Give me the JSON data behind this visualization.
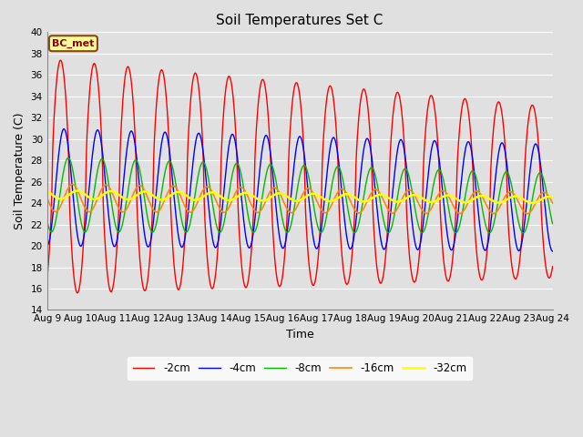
{
  "title": "Soil Temperatures Set C",
  "xlabel": "Time",
  "ylabel": "Soil Temperature (C)",
  "ylim": [
    14,
    40
  ],
  "yticks": [
    14,
    16,
    18,
    20,
    22,
    24,
    26,
    28,
    30,
    32,
    34,
    36,
    38,
    40
  ],
  "xtick_labels": [
    "Aug 9",
    "Aug 10",
    "Aug 11",
    "Aug 12",
    "Aug 13",
    "Aug 14",
    "Aug 15",
    "Aug 16",
    "Aug 17",
    "Aug 18",
    "Aug 19",
    "Aug 20",
    "Aug 21",
    "Aug 22",
    "Aug 23",
    "Aug 24"
  ],
  "colors": {
    "-2cm": "#FF0000",
    "-4cm": "#0000FF",
    "-8cm": "#00BB00",
    "-16cm": "#FF8800",
    "-32cm": "#FFFF00"
  },
  "legend_labels": [
    "-2cm",
    "-4cm",
    "-8cm",
    "-16cm",
    "-32cm"
  ],
  "bg_color": "#E0E0E0",
  "plot_bg_color": "#E0E0E0",
  "annotation_text": "BC_met",
  "annotation_bg": "#FFFF99",
  "annotation_border": "#8B4513",
  "figsize": [
    6.4,
    4.8
  ],
  "dpi": 100
}
